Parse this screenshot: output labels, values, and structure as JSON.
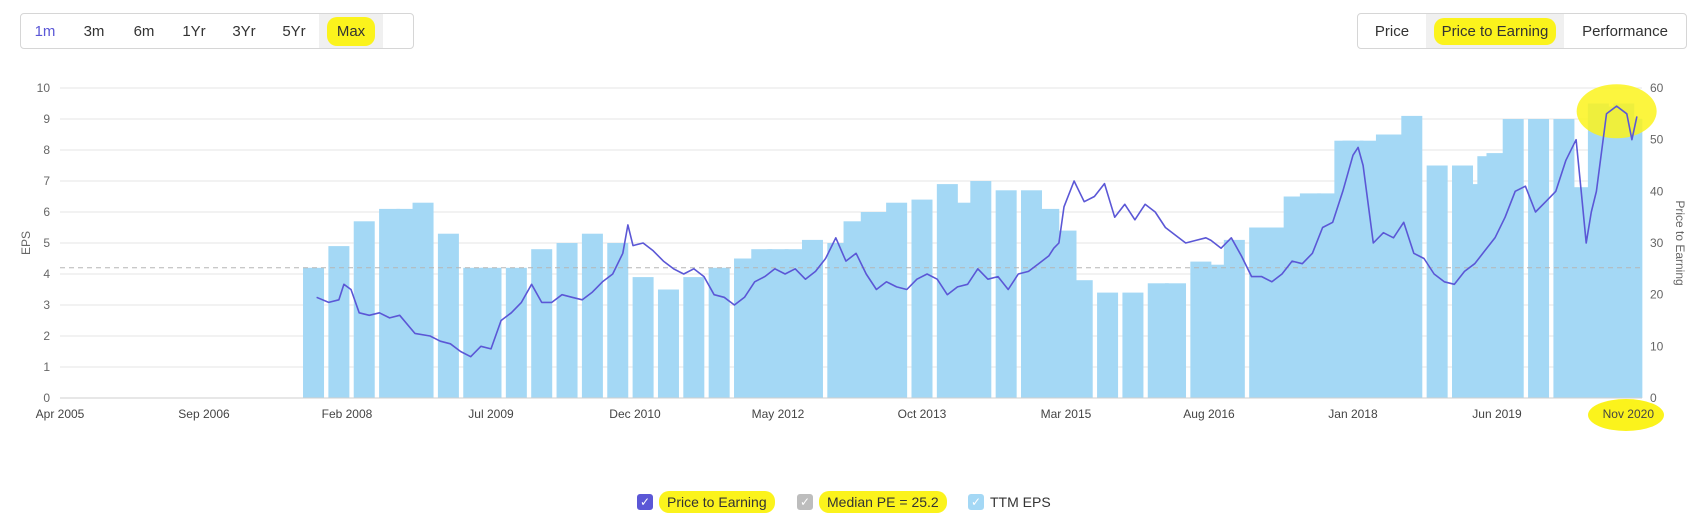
{
  "range_buttons": [
    "1m",
    "3m",
    "6m",
    "1Yr",
    "3Yr",
    "5Yr",
    "Max"
  ],
  "range_active": "1m",
  "range_selected": "Max",
  "mode_buttons": [
    "Price",
    "Price to Earning",
    "Performance"
  ],
  "mode_selected": "Price to Earning",
  "legend": [
    {
      "label": "Price to Earning",
      "color": "#5b57d6",
      "icon": "check-icon"
    },
    {
      "label": "Median PE = 25.2",
      "color": "#bdbdbd",
      "icon": "check-icon"
    },
    {
      "label": "TTM EPS",
      "color": "#a4d8f5",
      "icon": "check-icon"
    }
  ],
  "colors": {
    "bar": "#a4d8f5",
    "line": "#5b57d6",
    "median": "#c8c8c8",
    "highlight": "#fbf31c"
  },
  "chart_data": {
    "type": "bar+line",
    "xlabel": "",
    "ylabel_left": "EPS",
    "ylabel_right": "Price to Earning",
    "x_range": [
      2005.25,
      2020.85
    ],
    "y_left_range": [
      0,
      10
    ],
    "y_right_range": [
      0,
      60
    ],
    "y_left_ticks": [
      "0",
      "1",
      "2",
      "3",
      "4",
      "5",
      "6",
      "7",
      "8",
      "9",
      "10"
    ],
    "y_right_ticks": [
      "0",
      "10",
      "20",
      "30",
      "40",
      "50",
      "60"
    ],
    "x_tick_labels": [
      "Apr 2005",
      "Sep 2006",
      "Feb 2008",
      "Jul 2009",
      "Dec 2010",
      "May 2012",
      "Oct 2013",
      "Mar 2015",
      "Aug 2016",
      "Jan 2018",
      "Jun 2019",
      "Nov 2020"
    ],
    "x_tick_values": [
      2005.25,
      2006.67,
      2008.08,
      2009.5,
      2010.92,
      2012.33,
      2013.75,
      2015.17,
      2016.58,
      2018.0,
      2019.42,
      2020.85
    ],
    "median_pe": 25.2,
    "eps_bars": {
      "dates": [
        2007.75,
        2008.0,
        2008.25,
        2008.5,
        2008.67,
        2008.83,
        2009.08,
        2009.33,
        2009.5,
        2009.75,
        2010.0,
        2010.25,
        2010.5,
        2010.75,
        2011.0,
        2011.25,
        2011.5,
        2011.75,
        2012.0,
        2012.17,
        2012.33,
        2012.5,
        2012.67,
        2012.92,
        2013.08,
        2013.25,
        2013.42,
        2013.5,
        2013.75,
        2014.0,
        2014.17,
        2014.33,
        2014.58,
        2014.83,
        2015.0,
        2015.17,
        2015.33,
        2015.58,
        2015.83,
        2016.08,
        2016.25,
        2016.5,
        2016.67,
        2016.83,
        2017.08,
        2017.25,
        2017.42,
        2017.58,
        2017.75,
        2017.92,
        2018.0,
        2018.17,
        2018.33,
        2018.42,
        2018.58,
        2018.83,
        2019.08,
        2019.25,
        2019.33,
        2019.42,
        2019.58,
        2019.83,
        2020.08,
        2020.25,
        2020.42,
        2020.5,
        2020.67,
        2020.75
      ],
      "values": [
        4.2,
        4.9,
        5.7,
        6.1,
        6.1,
        6.3,
        5.3,
        4.2,
        4.2,
        4.2,
        4.8,
        5.0,
        5.3,
        5.0,
        3.9,
        3.5,
        3.9,
        4.2,
        4.5,
        4.8,
        4.8,
        4.8,
        5.1,
        5.0,
        5.7,
        6.0,
        6.0,
        6.3,
        6.4,
        6.9,
        6.3,
        7.0,
        6.7,
        6.7,
        6.1,
        5.4,
        3.8,
        3.4,
        3.4,
        3.7,
        3.7,
        4.4,
        4.3,
        5.1,
        5.5,
        5.5,
        6.5,
        6.6,
        6.6,
        8.3,
        8.3,
        8.3,
        8.5,
        8.5,
        9.1,
        7.5,
        7.5,
        6.9,
        7.8,
        7.9,
        9.0,
        9.0,
        9.0,
        6.8,
        9.5,
        9.4,
        9.5,
        9.0
      ]
    },
    "pe_line": {
      "x": [
        2007.78,
        2007.9,
        2008.0,
        2008.05,
        2008.12,
        2008.2,
        2008.3,
        2008.4,
        2008.5,
        2008.6,
        2008.75,
        2008.9,
        2009.0,
        2009.1,
        2009.2,
        2009.3,
        2009.4,
        2009.5,
        2009.6,
        2009.7,
        2009.8,
        2009.9,
        2010.0,
        2010.1,
        2010.2,
        2010.3,
        2010.4,
        2010.5,
        2010.6,
        2010.7,
        2010.8,
        2010.85,
        2010.9,
        2011.0,
        2011.1,
        2011.2,
        2011.3,
        2011.4,
        2011.5,
        2011.6,
        2011.7,
        2011.8,
        2011.9,
        2012.0,
        2012.1,
        2012.2,
        2012.3,
        2012.4,
        2012.5,
        2012.6,
        2012.7,
        2012.8,
        2012.9,
        2013.0,
        2013.1,
        2013.2,
        2013.3,
        2013.4,
        2013.5,
        2013.6,
        2013.7,
        2013.8,
        2013.9,
        2014.0,
        2014.1,
        2014.2,
        2014.3,
        2014.4,
        2014.5,
        2014.6,
        2014.7,
        2014.8,
        2014.9,
        2015.0,
        2015.05,
        2015.1,
        2015.15,
        2015.25,
        2015.35,
        2015.45,
        2015.55,
        2015.65,
        2015.75,
        2015.85,
        2015.95,
        2016.05,
        2016.15,
        2016.25,
        2016.35,
        2016.45,
        2016.55,
        2016.6,
        2016.7,
        2016.8,
        2016.9,
        2017.0,
        2017.1,
        2017.2,
        2017.3,
        2017.4,
        2017.5,
        2017.6,
        2017.7,
        2017.8,
        2017.9,
        2018.0,
        2018.05,
        2018.1,
        2018.2,
        2018.3,
        2018.4,
        2018.5,
        2018.6,
        2018.7,
        2018.8,
        2018.9,
        2019.0,
        2019.1,
        2019.2,
        2019.3,
        2019.4,
        2019.5,
        2019.6,
        2019.7,
        2019.8,
        2019.9,
        2020.0,
        2020.1,
        2020.2,
        2020.25,
        2020.3,
        2020.35,
        2020.4,
        2020.5,
        2020.6,
        2020.7,
        2020.75,
        2020.8
      ],
      "y": [
        19.5,
        18.5,
        19.0,
        22.0,
        21.0,
        16.5,
        16.0,
        16.5,
        15.5,
        16.0,
        12.5,
        12.0,
        11.0,
        10.5,
        9.0,
        8.0,
        10.0,
        9.5,
        15.0,
        16.5,
        18.5,
        22.0,
        18.5,
        18.5,
        20.0,
        19.5,
        19.0,
        20.5,
        22.5,
        24.0,
        28.0,
        33.5,
        29.5,
        30.0,
        28.5,
        26.5,
        25.0,
        24.0,
        25.0,
        23.5,
        20.0,
        19.5,
        18.0,
        19.5,
        22.5,
        23.5,
        25.0,
        24.0,
        25.0,
        23.0,
        24.5,
        27.0,
        31.0,
        26.5,
        28.0,
        24.0,
        21.0,
        22.5,
        21.5,
        21.0,
        23.0,
        24.0,
        23.0,
        20.0,
        21.5,
        22.0,
        25.0,
        23.0,
        23.5,
        21.0,
        24.0,
        24.5,
        26.0,
        27.5,
        29.0,
        30.0,
        37.0,
        42.0,
        38.0,
        39.0,
        41.5,
        35.0,
        37.5,
        34.5,
        37.5,
        36.0,
        33.0,
        31.5,
        30.0,
        30.5,
        31.0,
        30.5,
        29.0,
        31.0,
        27.5,
        23.5,
        23.5,
        22.5,
        24.0,
        26.5,
        26.0,
        28.0,
        33.0,
        34.0,
        40.0,
        47.0,
        48.5,
        45.0,
        30.0,
        32.0,
        31.0,
        34.0,
        28.0,
        27.0,
        24.0,
        22.5,
        22.0,
        24.5,
        26.0,
        28.5,
        31.0,
        35.0,
        40.0,
        41.0,
        36.0,
        38.0,
        40.0,
        46.0,
        50.0,
        40.0,
        30.0,
        36.0,
        40.0,
        55.0,
        56.5,
        55.0,
        50.0,
        54.5
      ]
    }
  }
}
